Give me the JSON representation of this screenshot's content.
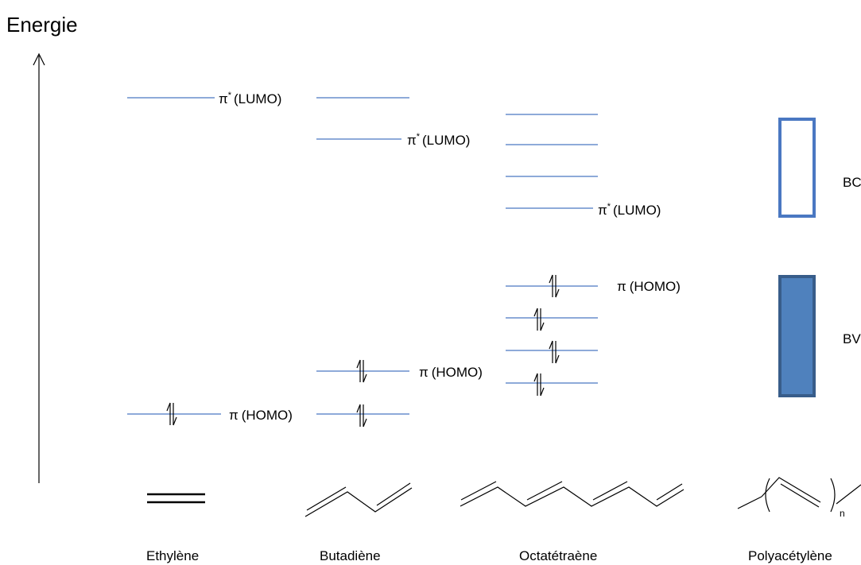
{
  "axis": {
    "title": "Energie"
  },
  "symbols": {
    "pi": "π",
    "star": "*"
  },
  "labels": {
    "lumo": "(LUMO)",
    "homo": "(HOMO)",
    "conduction_band": "BC",
    "valence_band": "BV",
    "polymer_subscript": "n"
  },
  "molecules": {
    "ethylene": "Ethylène",
    "butadiene": "Butadiène",
    "octatetraene": "Octatétraène",
    "polyacetylene": "Polyacétylène"
  },
  "colors": {
    "level_line": "#4a78c2",
    "band_outline": "#4a78c2",
    "valence_fill": "#4f81bd",
    "valence_outline": "#385d8a"
  }
}
